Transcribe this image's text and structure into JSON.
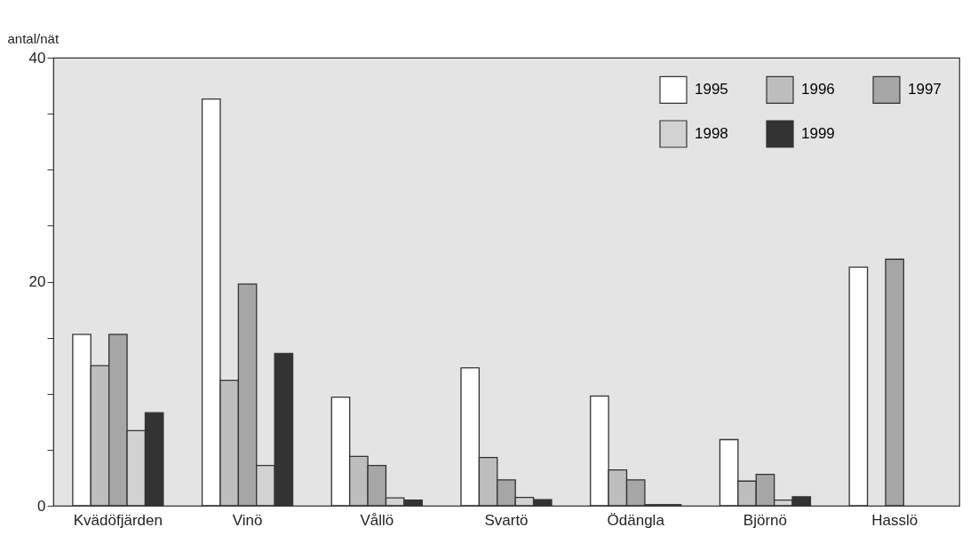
{
  "chart_data": {
    "type": "bar",
    "ylabel": "antal/nät",
    "categories": [
      "Kvädöfjärden",
      "Vinö",
      "Vållö",
      "Svartö",
      "Ödängla",
      "Björnö",
      "Hasslö"
    ],
    "series": [
      {
        "name": "1995",
        "color": "#ffffff",
        "values": [
          15.3,
          36.3,
          9.7,
          12.3,
          9.8,
          5.9,
          21.3
        ]
      },
      {
        "name": "1996",
        "color": "#bdbdbd",
        "values": [
          12.5,
          11.2,
          4.4,
          4.3,
          3.2,
          2.2,
          null
        ]
      },
      {
        "name": "1997",
        "color": "#a6a6a6",
        "values": [
          15.3,
          19.8,
          3.6,
          2.3,
          2.3,
          2.8,
          22.0
        ]
      },
      {
        "name": "1998",
        "color": "#d2d2d2",
        "values": [
          6.7,
          3.6,
          0.7,
          0.75,
          0.1,
          0.5,
          null
        ]
      },
      {
        "name": "1999",
        "color": "#333333",
        "values": [
          8.3,
          13.6,
          0.5,
          0.55,
          0.1,
          0.8,
          null
        ]
      }
    ],
    "ylim": [
      0,
      40
    ],
    "yticks": [
      0,
      {
        "value": 5,
        "label": null
      },
      {
        "value": 10,
        "label": null
      },
      {
        "value": 15,
        "label": null
      },
      20,
      {
        "value": 25,
        "label": null
      },
      {
        "value": 30,
        "label": null
      },
      {
        "value": 35,
        "label": null
      },
      40
    ],
    "grid": false,
    "legend": "top right"
  }
}
